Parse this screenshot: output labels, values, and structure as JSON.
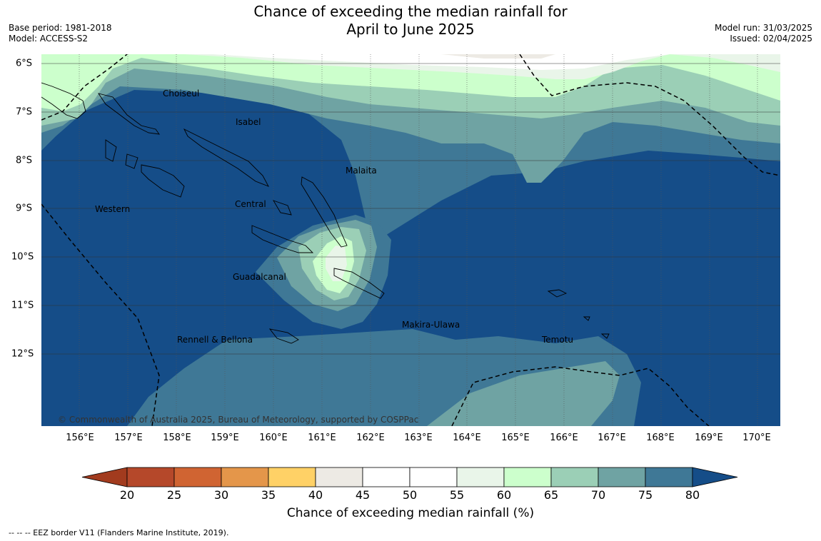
{
  "title": [
    "Chance of exceeding the median rainfall for",
    "April to June 2025"
  ],
  "meta_left": [
    "Base period: 1981-2018",
    "Model: ACCESS-S2"
  ],
  "meta_right": [
    "Model run: 31/03/2025",
    "Issued: 02/04/2025"
  ],
  "copyright": "© Commonwealth of Australia 2025, Bureau of Meteorology, supported by COSPPac",
  "lat_labels": [
    "6°S",
    "7°S",
    "8°S",
    "9°S",
    "10°S",
    "11°S",
    "12°S"
  ],
  "lon_labels": [
    "156°E",
    "157°E",
    "158°E",
    "159°E",
    "160°E",
    "161°E",
    "162°E",
    "163°E",
    "164°E",
    "165°E",
    "166°E",
    "167°E",
    "168°E",
    "169°E",
    "170°E"
  ],
  "places": {
    "choiseul": "Choiseul",
    "isabel": "Isabel",
    "malaita": "Malaita",
    "western": "Western",
    "central": "Central",
    "guadalcanal": "Guadalcanal",
    "makira": "Makira-Ulawa",
    "rennell": "Rennell & Bellona",
    "temotu": "Temotu"
  },
  "colorbar": {
    "ticks": [
      "20",
      "25",
      "30",
      "35",
      "40",
      "45",
      "50",
      "55",
      "60",
      "65",
      "70",
      "75",
      "80"
    ],
    "colors": [
      "#a23b1e",
      "#b5482a",
      "#d06432",
      "#e4964a",
      "#ffd166",
      "#edeae4",
      "#ffffff",
      "#ffffff",
      "#e9f5e9",
      "#ccffcc",
      "#9bcfb6",
      "#6fa3a3",
      "#3f7896",
      "#154d88"
    ],
    "title": "Chance of exceeding median rainfall (%)"
  },
  "footer": "--  --  -- EEZ border V11 (Flanders Marine Institute, 2019)."
}
